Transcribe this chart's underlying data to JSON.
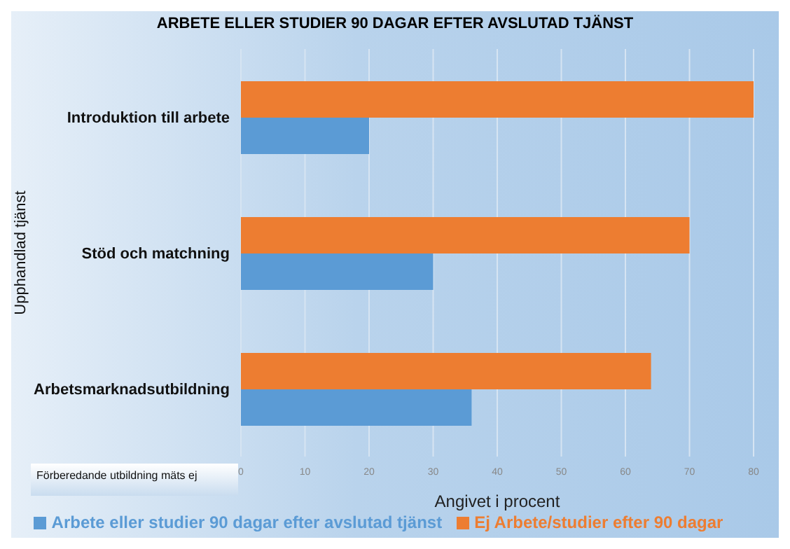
{
  "chart_data": {
    "type": "bar",
    "orientation": "horizontal",
    "title": "ARBETE ELLER STUDIER 90 DAGAR EFTER AVSLUTAD TJÄNST",
    "xlabel": "Angivet i procent",
    "ylabel": "Upphandlad tjänst",
    "categories": [
      "Introduktion till arbete",
      "Stöd och matchning",
      "Arbetsmarknadsutbildning"
    ],
    "series": [
      {
        "name": "Ej Arbete/studier efter 90 dagar",
        "color": "#ed7d31",
        "values": [
          80,
          70,
          64
        ]
      },
      {
        "name": "Arbete eller studier 90 dagar efter avslutad tjänst",
        "color": "#5b9bd5",
        "values": [
          20,
          30,
          36
        ]
      }
    ],
    "xlim": [
      0,
      80
    ],
    "xticks": [
      0,
      10,
      20,
      30,
      40,
      50,
      60,
      70,
      80
    ],
    "grid": "x",
    "legend": "bottom",
    "annotations": [
      "Förberedande utbildning mäts ej"
    ]
  }
}
